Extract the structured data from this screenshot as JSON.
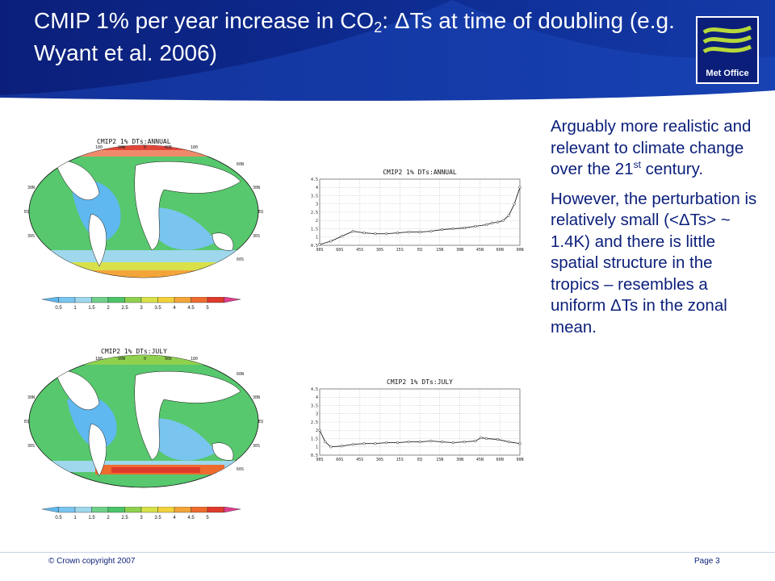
{
  "slide": {
    "title_part1": "CMIP 1% per year increase in CO",
    "title_sub": "2",
    "title_part2": ": ΔTs at time of doubling (e.g. Wyant et al. 2006)",
    "logo_text": "Met Office",
    "brand_color": "#0b1f7a",
    "paragraph1_a": "Arguably more realistic and relevant to climate change over the 21",
    "paragraph1_sup": "st",
    "paragraph1_b": " century.",
    "paragraph2": "However, the perturbation is relatively small (<ΔTs> ~ 1.4K) and there is little spatial structure in the tropics  – resembles a uniform ΔTs in the zonal mean.",
    "footer_left": "© Crown copyright 2007",
    "footer_right": "Page 3"
  },
  "maps": [
    {
      "title": "CMIP2 1% DTs:ANNUAL",
      "lon_labels": [
        "180",
        "90W",
        "0",
        "90E",
        "180"
      ],
      "lat_labels": [
        "60N",
        "30N",
        "EQ",
        "30S",
        "60S"
      ]
    },
    {
      "title": "CMIP2 1% DTs:JULY",
      "lon_labels": [
        "180",
        "90W",
        "0",
        "90E",
        "180"
      ],
      "lat_labels": [
        "60N",
        "30N",
        "EQ",
        "30S",
        "60S"
      ]
    }
  ],
  "colorbar": {
    "ticks": [
      "0.5",
      "1",
      "1.5",
      "2",
      "2.5",
      "3",
      "3.5",
      "4",
      "4.5",
      "5"
    ],
    "colors": [
      "#5fb8ef",
      "#79c5f0",
      "#9fd7ec",
      "#6fd08a",
      "#4cc46a",
      "#8fd14f",
      "#d8e14a",
      "#f2d23c",
      "#f3a53a",
      "#ee6b2e",
      "#de3a2c",
      "#e23d8b"
    ]
  },
  "chart_data": [
    {
      "type": "line",
      "title": "CMIP2 1% DTs:ANNUAL",
      "x_tick_labels": [
        "90S",
        "60S",
        "45S",
        "30S",
        "15S",
        "EQ",
        "15N",
        "30N",
        "45N",
        "60N",
        "90N"
      ],
      "y_tick_labels": [
        "0.5",
        "1",
        "1.5",
        "2",
        "2.5",
        "3",
        "3.5",
        "4",
        "4.5"
      ],
      "ylim": [
        0.5,
        4.5
      ],
      "x": [
        -90,
        -80,
        -70,
        -60,
        -50,
        -40,
        -30,
        -20,
        -10,
        0,
        10,
        20,
        30,
        40,
        50,
        60,
        65,
        70,
        75,
        80,
        85,
        90
      ],
      "values": [
        0.55,
        0.75,
        1.05,
        1.35,
        1.25,
        1.2,
        1.2,
        1.25,
        1.3,
        1.3,
        1.35,
        1.45,
        1.5,
        1.55,
        1.65,
        1.75,
        1.85,
        1.9,
        2.0,
        2.3,
        3.0,
        4.0
      ]
    },
    {
      "type": "line",
      "title": "CMIP2 1% DTs:JULY",
      "x_tick_labels": [
        "90S",
        "60S",
        "45S",
        "30S",
        "15S",
        "EQ",
        "15N",
        "30N",
        "45N",
        "60N",
        "90N"
      ],
      "y_tick_labels": [
        "0.5",
        "1",
        "1.5",
        "2",
        "2.5",
        "3",
        "3.5",
        "4",
        "4.5"
      ],
      "ylim": [
        0.5,
        4.5
      ],
      "x": [
        -90,
        -85,
        -80,
        -70,
        -60,
        -50,
        -40,
        -30,
        -20,
        -10,
        0,
        10,
        20,
        30,
        40,
        50,
        55,
        60,
        70,
        80,
        90
      ],
      "values": [
        2.0,
        1.3,
        1.0,
        1.05,
        1.15,
        1.2,
        1.2,
        1.25,
        1.25,
        1.3,
        1.3,
        1.35,
        1.3,
        1.25,
        1.3,
        1.35,
        1.55,
        1.5,
        1.45,
        1.3,
        1.2
      ]
    }
  ]
}
